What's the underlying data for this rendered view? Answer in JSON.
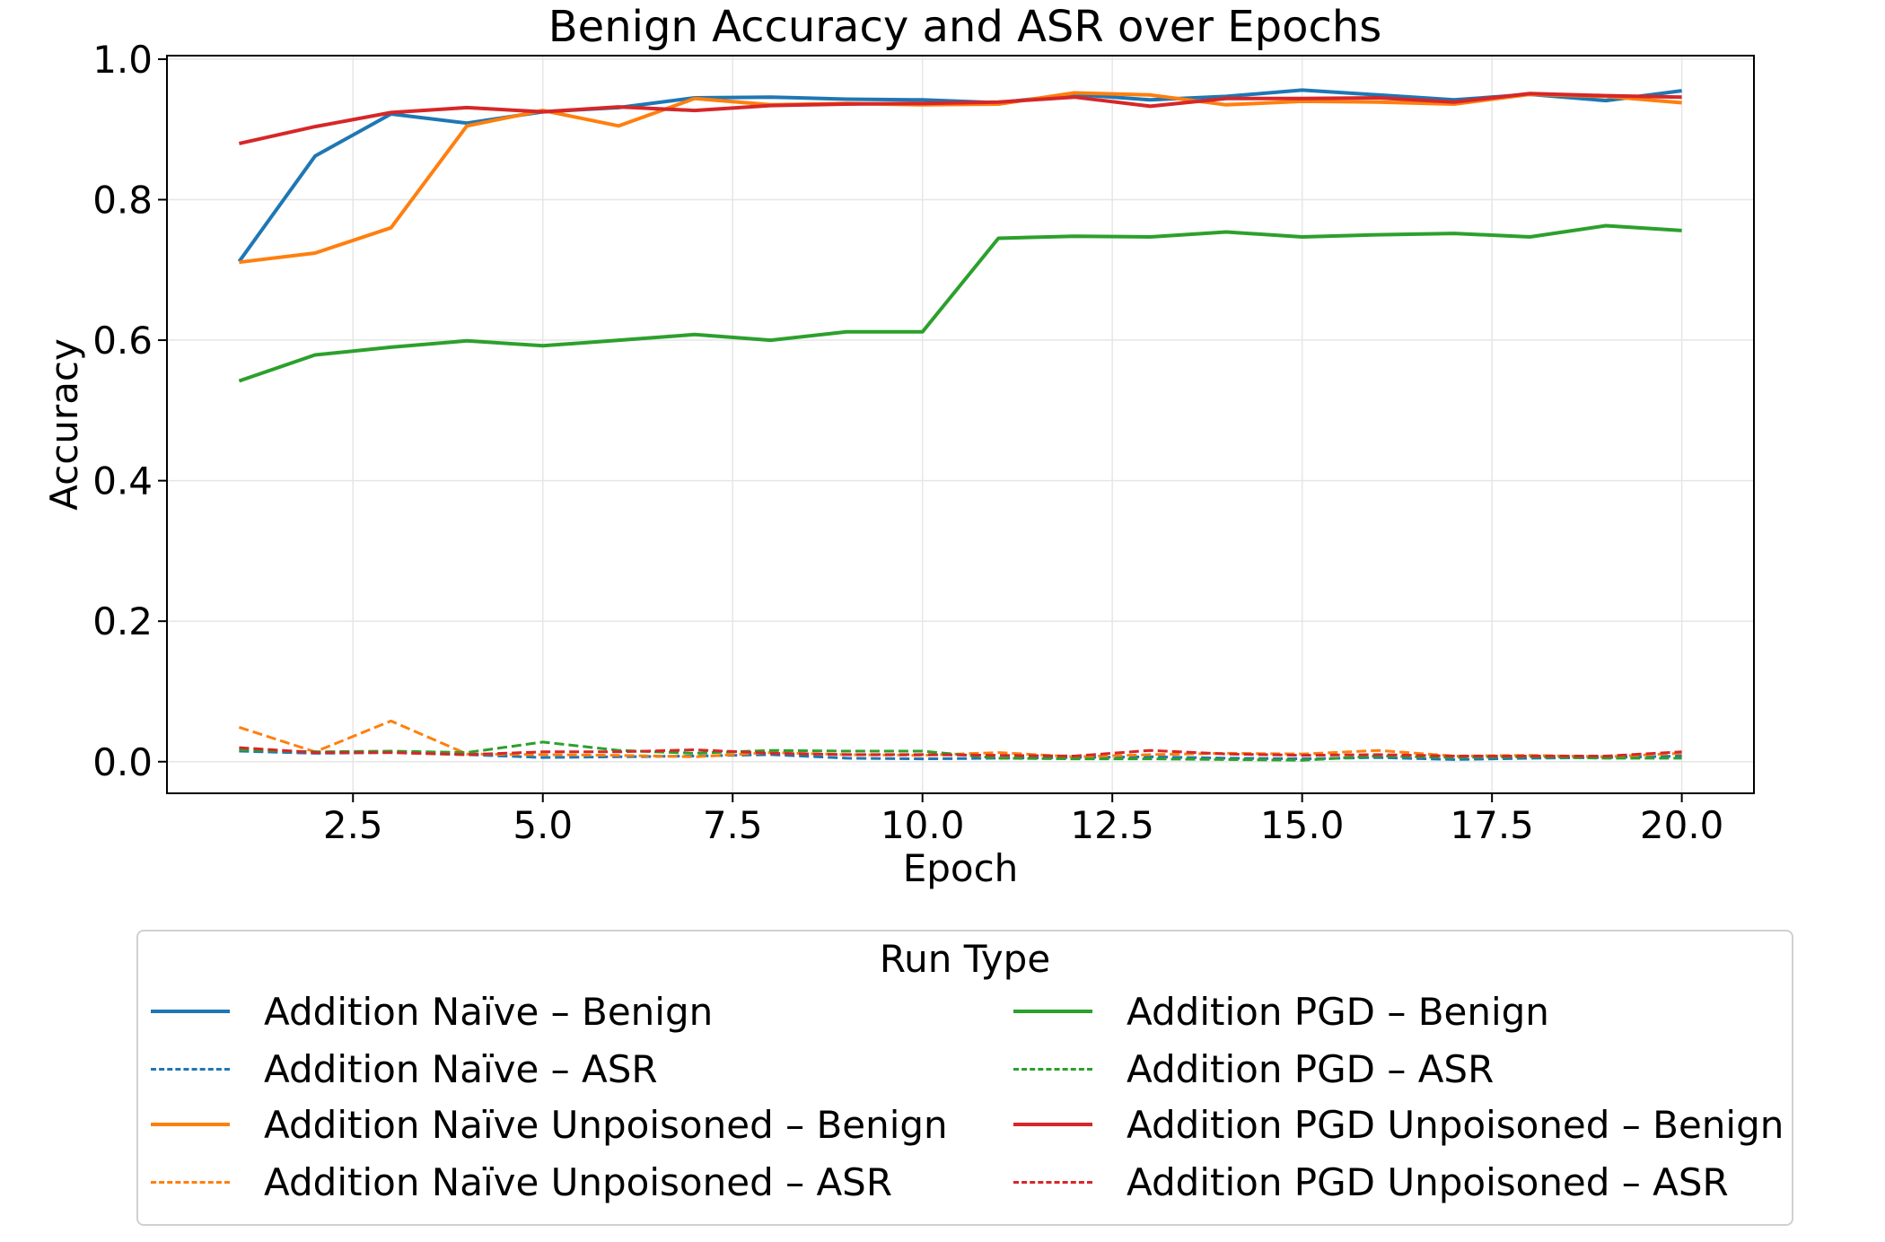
{
  "chart_data": {
    "type": "line",
    "title": "Benign Accuracy and ASR over Epochs",
    "xlabel": "Epoch",
    "ylabel": "Accuracy",
    "xlim": [
      0.05,
      20.95
    ],
    "ylim": [
      -0.045,
      1.005
    ],
    "xticks": [
      2.5,
      5.0,
      7.5,
      10.0,
      12.5,
      15.0,
      17.5,
      20.0
    ],
    "xtick_labels": [
      "2.5",
      "5.0",
      "7.5",
      "10.0",
      "12.5",
      "15.0",
      "17.5",
      "20.0"
    ],
    "yticks": [
      0.0,
      0.2,
      0.4,
      0.6,
      0.8,
      1.0
    ],
    "ytick_labels": [
      "0.0",
      "0.2",
      "0.4",
      "0.6",
      "0.8",
      "1.0"
    ],
    "grid": true,
    "legend_title": "Run Type",
    "legend_position": "bottom-center, outside plot, 2 columns",
    "x": [
      1,
      2,
      3,
      4,
      5,
      6,
      7,
      8,
      9,
      10,
      11,
      12,
      13,
      14,
      15,
      16,
      17,
      18,
      19,
      20
    ],
    "series": [
      {
        "name": "Addition Naïve – Benign",
        "color": "#1f77b4",
        "dash": "solid",
        "values": [
          0.712,
          0.862,
          0.922,
          0.909,
          0.925,
          0.931,
          0.945,
          0.946,
          0.943,
          0.942,
          0.938,
          0.95,
          0.942,
          0.947,
          0.956,
          0.949,
          0.942,
          0.95,
          0.941,
          0.955
        ]
      },
      {
        "name": "Addition Naïve – ASR",
        "color": "#1f77b4",
        "dash": "dashed",
        "values": [
          0.015,
          0.012,
          0.013,
          0.01,
          0.006,
          0.007,
          0.008,
          0.01,
          0.005,
          0.004,
          0.005,
          0.006,
          0.007,
          0.005,
          0.004,
          0.006,
          0.003,
          0.005,
          0.006,
          0.008
        ]
      },
      {
        "name": "Addition Naïve Unpoisoned – Benign",
        "color": "#ff7f0e",
        "dash": "solid",
        "values": [
          0.711,
          0.724,
          0.76,
          0.905,
          0.927,
          0.905,
          0.944,
          0.935,
          0.937,
          0.935,
          0.936,
          0.952,
          0.949,
          0.935,
          0.94,
          0.939,
          0.936,
          0.95,
          0.947,
          0.938
        ]
      },
      {
        "name": "Addition Naïve Unpoisoned – ASR",
        "color": "#ff7f0e",
        "dash": "dashed",
        "values": [
          0.049,
          0.014,
          0.058,
          0.011,
          0.01,
          0.009,
          0.007,
          0.013,
          0.01,
          0.009,
          0.013,
          0.007,
          0.01,
          0.012,
          0.011,
          0.016,
          0.008,
          0.009,
          0.007,
          0.012
        ]
      },
      {
        "name": "Addition PGD – Benign",
        "color": "#2ca02c",
        "dash": "solid",
        "values": [
          0.542,
          0.579,
          0.59,
          0.599,
          0.592,
          0.6,
          0.608,
          0.6,
          0.612,
          0.612,
          0.745,
          0.748,
          0.747,
          0.754,
          0.747,
          0.75,
          0.752,
          0.747,
          0.763,
          0.756
        ]
      },
      {
        "name": "Addition PGD – ASR",
        "color": "#2ca02c",
        "dash": "dashed",
        "values": [
          0.017,
          0.014,
          0.015,
          0.013,
          0.028,
          0.016,
          0.012,
          0.016,
          0.015,
          0.015,
          0.005,
          0.004,
          0.004,
          0.003,
          0.002,
          0.008,
          0.006,
          0.007,
          0.005,
          0.005
        ]
      },
      {
        "name": "Addition PGD Unpoisoned – Benign",
        "color": "#d62728",
        "dash": "solid",
        "values": [
          0.88,
          0.904,
          0.924,
          0.931,
          0.925,
          0.932,
          0.927,
          0.934,
          0.936,
          0.937,
          0.939,
          0.946,
          0.933,
          0.944,
          0.944,
          0.945,
          0.939,
          0.951,
          0.948,
          0.946
        ]
      },
      {
        "name": "Addition PGD Unpoisoned – ASR",
        "color": "#d62728",
        "dash": "dashed",
        "values": [
          0.02,
          0.013,
          0.013,
          0.01,
          0.014,
          0.014,
          0.017,
          0.012,
          0.01,
          0.01,
          0.009,
          0.008,
          0.016,
          0.011,
          0.009,
          0.01,
          0.008,
          0.008,
          0.008,
          0.014
        ]
      }
    ]
  }
}
